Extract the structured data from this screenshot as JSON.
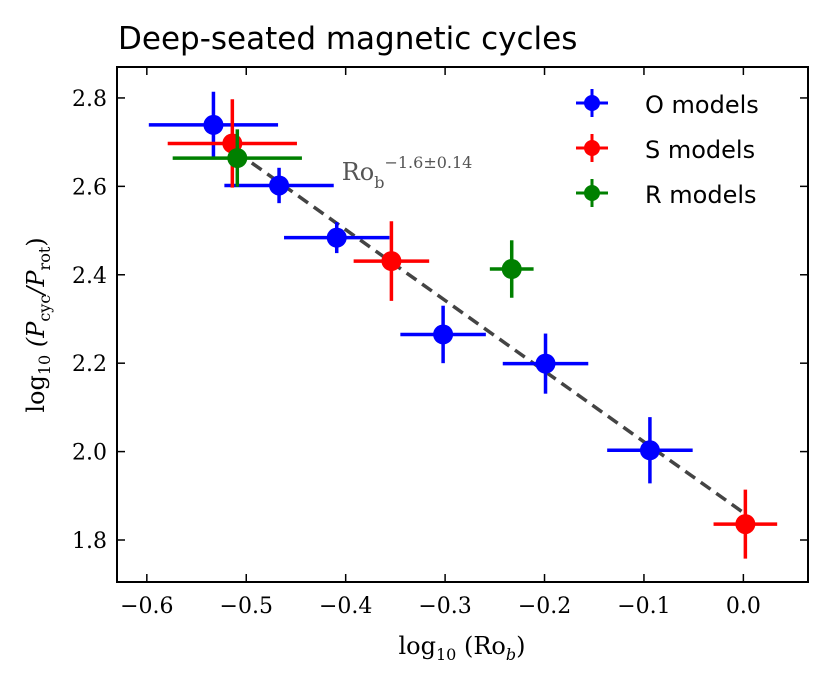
{
  "chart_data": {
    "type": "scatter",
    "title": "Deep-seated magnetic cycles",
    "xlabel": {
      "main": "log",
      "sub10": "10",
      "open": " (Ro",
      "sub": "b",
      "close": ")"
    },
    "ylabel": {
      "main": "log",
      "sub10": "10",
      "open": " (P",
      "sub1": "cyc",
      "mid": "/P",
      "sub2": "rot",
      "close": ")"
    },
    "xlim": [
      -0.63,
      0.065
    ],
    "ylim": [
      1.705,
      2.87
    ],
    "xticks": [
      -0.6,
      -0.5,
      -0.4,
      -0.3,
      -0.2,
      -0.1,
      0.0
    ],
    "yticks": [
      1.8,
      2.0,
      2.2,
      2.4,
      2.6,
      2.8
    ],
    "xtick_labels": [
      "−0.6",
      "−0.5",
      "−0.4",
      "−0.3",
      "−0.2",
      "−0.1",
      "0.0"
    ],
    "ytick_labels": [
      "1.8",
      "2.0",
      "2.2",
      "2.4",
      "2.6",
      "2.8"
    ],
    "legend_position": "top-right",
    "series": [
      {
        "name": "O models",
        "color": "#0000ff",
        "points": [
          {
            "x": -0.533,
            "y": 2.739,
            "xerr": 0.065,
            "yerr": 0.075
          },
          {
            "x": -0.467,
            "y": 2.602,
            "xerr": 0.055,
            "yerr": 0.04
          },
          {
            "x": -0.409,
            "y": 2.484,
            "xerr": 0.053,
            "yerr": 0.035
          },
          {
            "x": -0.302,
            "y": 2.265,
            "xerr": 0.043,
            "yerr": 0.065
          },
          {
            "x": -0.199,
            "y": 2.199,
            "xerr": 0.043,
            "yerr": 0.068
          },
          {
            "x": -0.094,
            "y": 2.003,
            "xerr": 0.043,
            "yerr": 0.075
          }
        ]
      },
      {
        "name": "S models",
        "color": "#ff0000",
        "points": [
          {
            "x": -0.514,
            "y": 2.697,
            "xerr": 0.065,
            "yerr": 0.1
          },
          {
            "x": -0.354,
            "y": 2.431,
            "xerr": 0.038,
            "yerr": 0.09
          },
          {
            "x": 0.002,
            "y": 1.836,
            "xerr": 0.032,
            "yerr": 0.078
          }
        ]
      },
      {
        "name": "R models",
        "color": "#008000",
        "points": [
          {
            "x": -0.509,
            "y": 2.664,
            "xerr": 0.065,
            "yerr": 0.065
          },
          {
            "x": -0.233,
            "y": 2.413,
            "xerr": 0.022,
            "yerr": 0.065
          }
        ]
      }
    ],
    "fit": {
      "color": "#444444",
      "style": "dashed",
      "x": [
        -0.51,
        0.0
      ],
      "y": [
        2.678,
        1.862
      ],
      "label_base": "Ro",
      "label_sub": "b",
      "label_sup": "−1.6±0.14",
      "label_anchor": {
        "x": -0.404,
        "y": 2.614
      }
    }
  }
}
